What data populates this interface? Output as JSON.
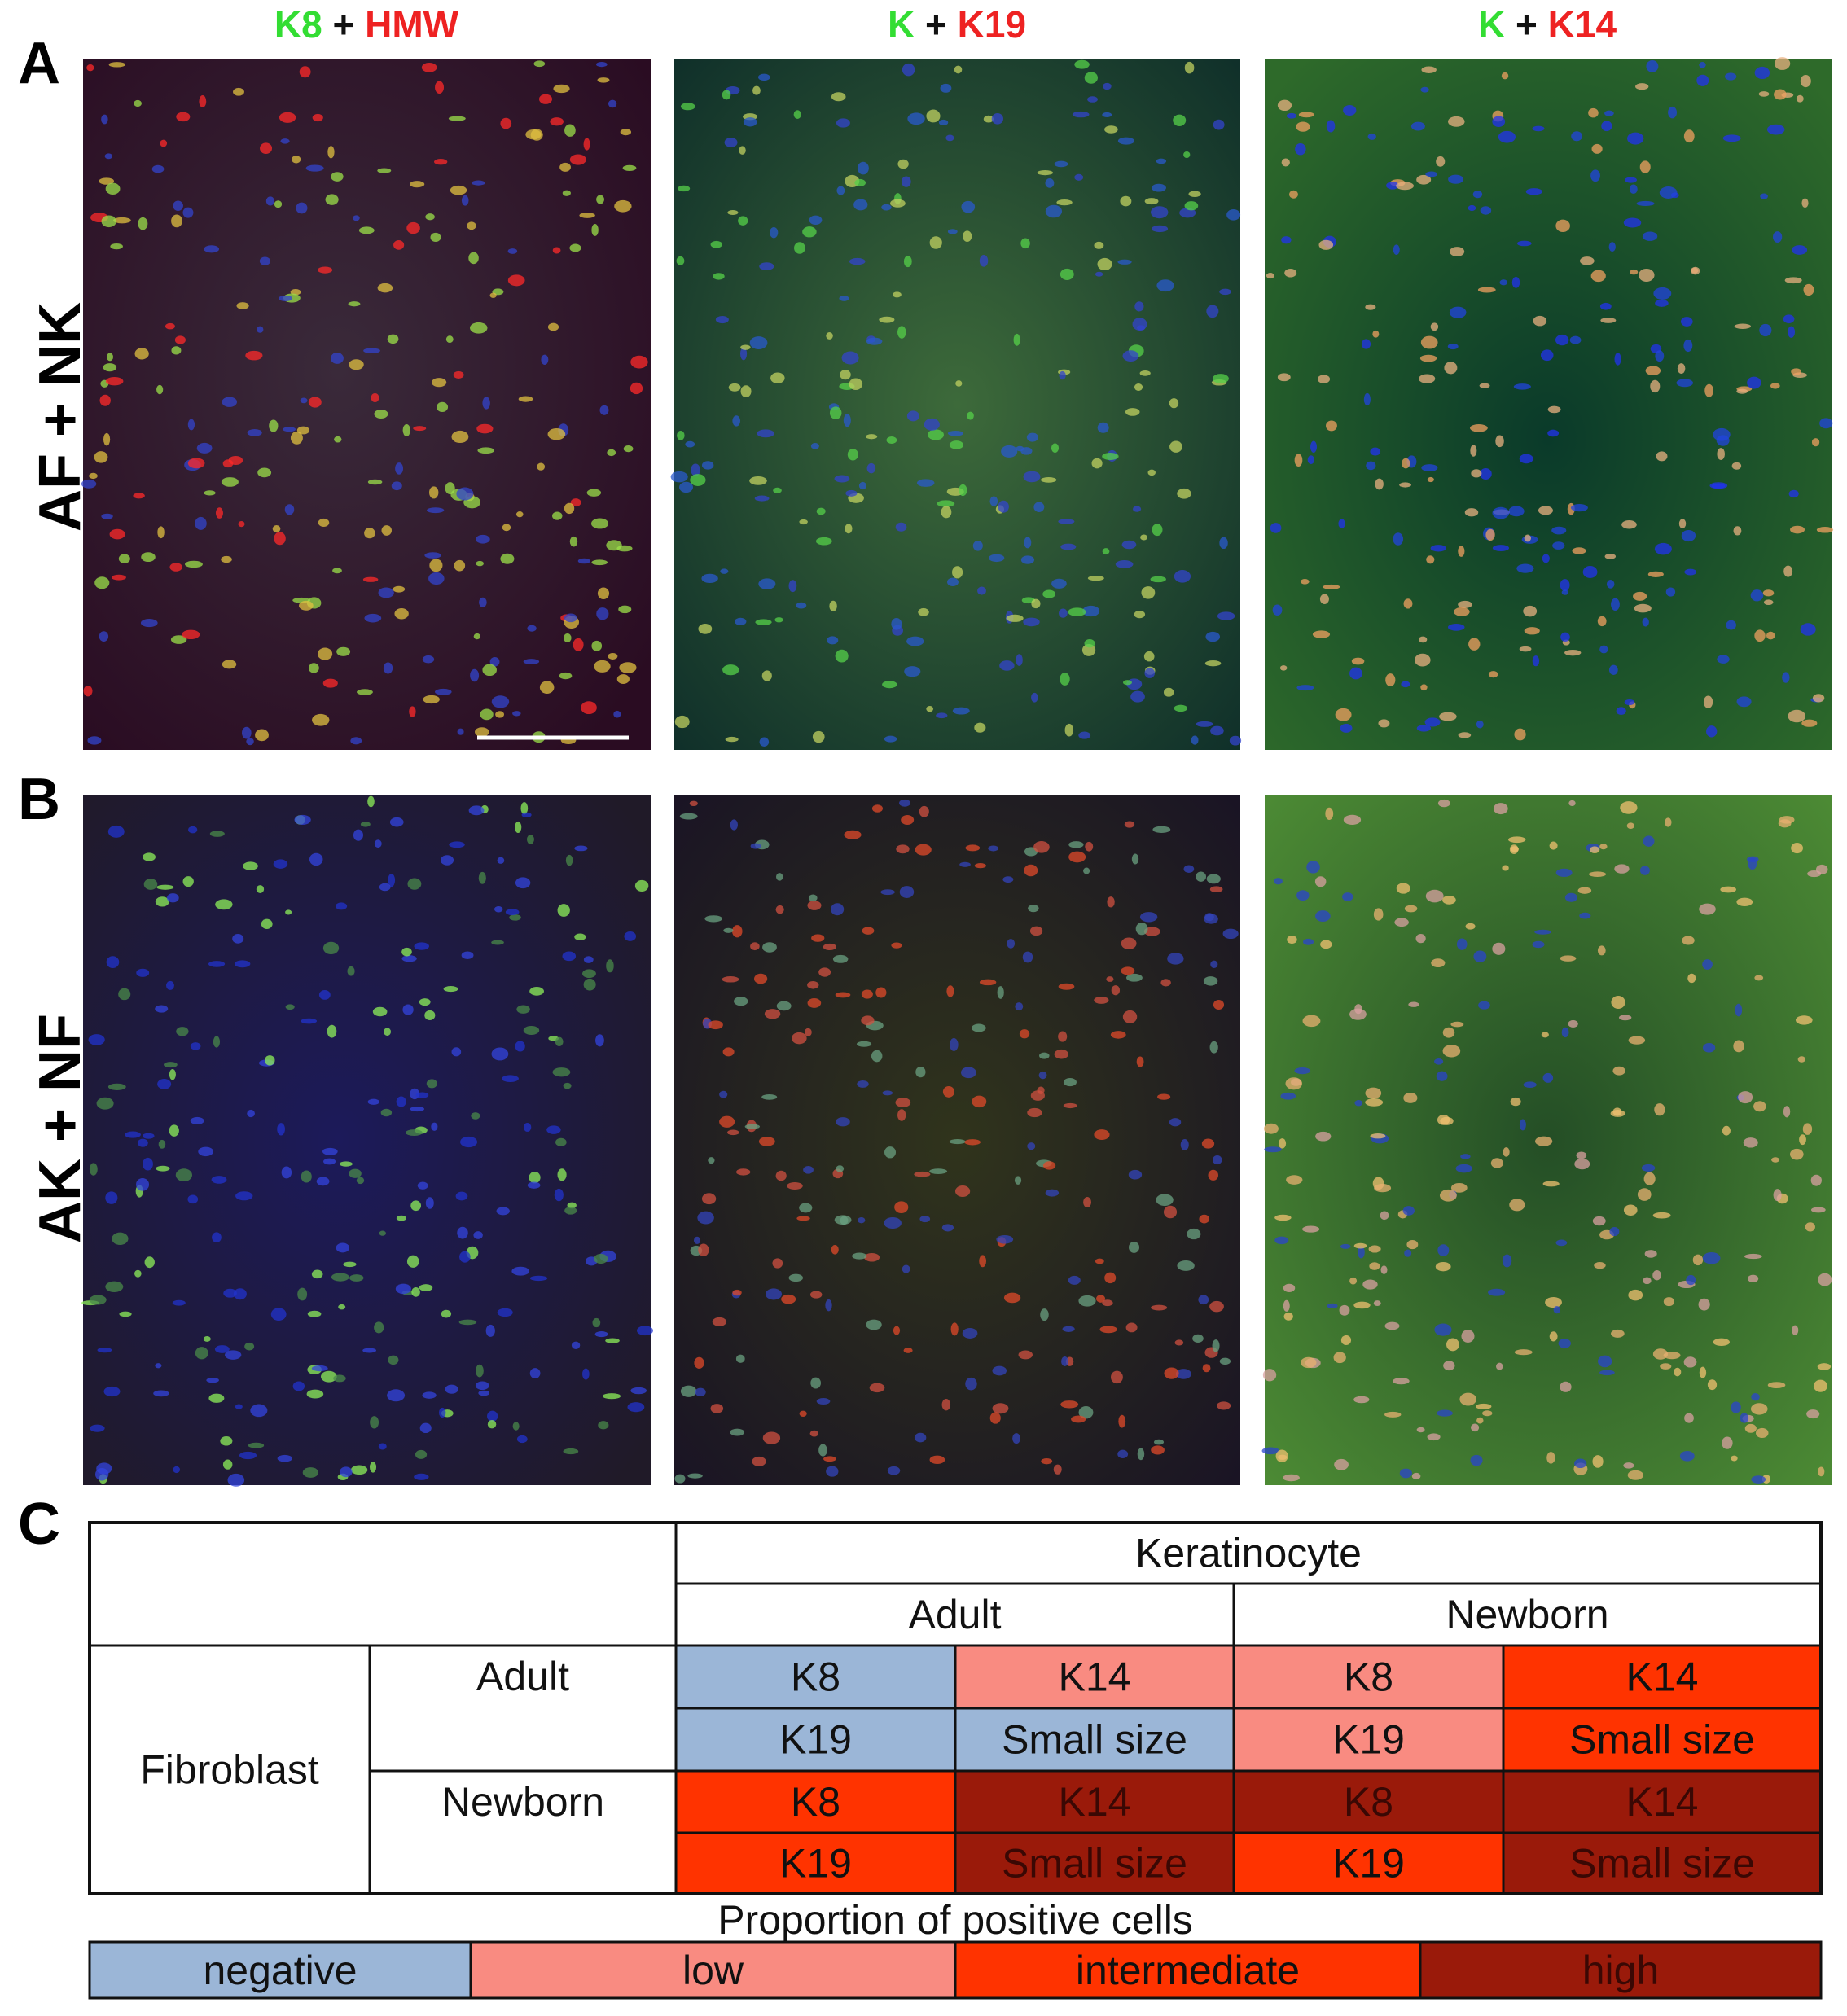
{
  "panels": [
    "A",
    "B",
    "C"
  ],
  "column_headers": [
    {
      "green": "K8",
      "plus": "+",
      "red": "HMW"
    },
    {
      "green": "K",
      "plus": "+",
      "red": "K19"
    },
    {
      "green": "K",
      "plus": "+",
      "red": "K14"
    }
  ],
  "row_labels": [
    "AF + NK",
    "AK + NF"
  ],
  "table": {
    "group": "Keratinocyte",
    "columns": [
      "Adult",
      "Newborn"
    ],
    "row_group": "Fibroblast",
    "rows": [
      {
        "label": "Adult",
        "cells": [
          [
            {
              "text": "K8",
              "level": 0
            },
            {
              "text": "K14",
              "level": 1
            },
            {
              "text": "K8",
              "level": 1
            },
            {
              "text": "K14",
              "level": 2
            }
          ],
          [
            {
              "text": "K19",
              "level": 0
            },
            {
              "text": "Small size",
              "level": 0
            },
            {
              "text": "K19",
              "level": 1
            },
            {
              "text": "Small size",
              "level": 2
            }
          ]
        ]
      },
      {
        "label": "Newborn",
        "cells": [
          [
            {
              "text": "K8",
              "level": 2
            },
            {
              "text": "K14",
              "level": 3
            },
            {
              "text": "K8",
              "level": 3
            },
            {
              "text": "K14",
              "level": 3
            }
          ],
          [
            {
              "text": "K19",
              "level": 2
            },
            {
              "text": "Small size",
              "level": 3
            },
            {
              "text": "K19",
              "level": 2
            },
            {
              "text": "Small size",
              "level": 3
            }
          ]
        ]
      }
    ]
  },
  "legend": {
    "title": "Proportion of positive cells",
    "items": [
      {
        "label": "negative",
        "color": "#9bb6d7"
      },
      {
        "label": "low",
        "color": "#f98b81"
      },
      {
        "label": "intermediate",
        "color": "#ff3300"
      },
      {
        "label": "high",
        "color": "#9a1a0a"
      }
    ]
  }
}
